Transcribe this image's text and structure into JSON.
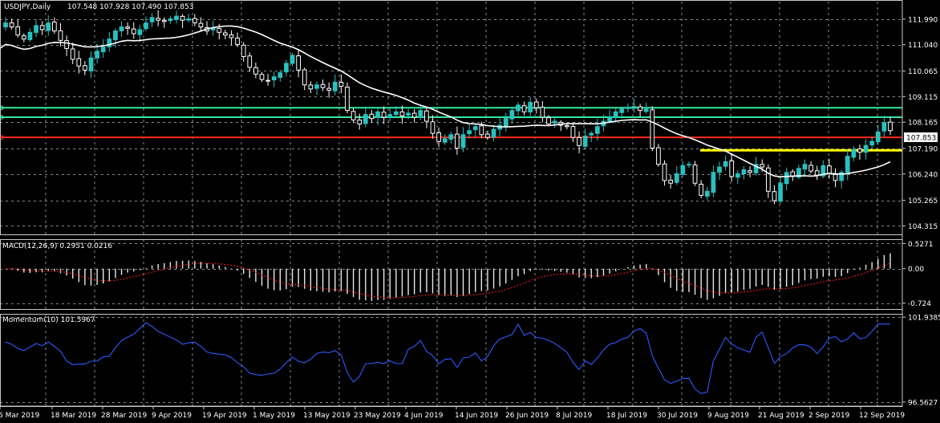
{
  "chart_data": [
    {
      "type": "candlestick",
      "title": "USDJPY,Daily",
      "ohlc_readout": "107.548 107.928 107.490 107.853",
      "ylim": [
        104.0,
        112.7
      ],
      "y_ticks": [
        "111.990",
        "111.040",
        "110.065",
        "109.115",
        "108.165",
        "107.190",
        "106.240",
        "105.265",
        "104.315"
      ],
      "x_labels": [
        "6 Mar 2019",
        "18 Mar 2019",
        "28 Mar 2019",
        "9 Apr 2019",
        "19 Apr 2019",
        "1 May 2019",
        "13 May 2019",
        "23 May 2019",
        "4 Jun 2019",
        "14 Jun 2019",
        "26 Jun 2019",
        "8 Jul 2019",
        "18 Jul 2019",
        "30 Jul 2019",
        "9 Aug 2019",
        "21 Aug 2019",
        "2 Sep 2019",
        "12 Sep 2019"
      ],
      "current_price": "107.853",
      "closes": [
        111.85,
        111.7,
        111.4,
        111.25,
        111.5,
        111.75,
        111.6,
        111.85,
        111.55,
        111.2,
        110.9,
        110.5,
        110.25,
        110.1,
        110.55,
        110.8,
        110.95,
        111.25,
        111.55,
        111.7,
        111.65,
        111.45,
        111.6,
        111.85,
        112.05,
        111.95,
        111.9,
        112.0,
        112.1,
        111.95,
        112.0,
        111.85,
        111.7,
        111.55,
        111.65,
        111.5,
        111.4,
        111.3,
        111.05,
        110.6,
        110.2,
        109.95,
        109.75,
        109.7,
        109.85,
        110.0,
        110.35,
        110.65,
        110.1,
        109.55,
        109.4,
        109.55,
        109.45,
        109.35,
        109.65,
        109.5,
        108.6,
        108.25,
        108.1,
        108.45,
        108.3,
        108.55,
        108.35,
        108.45,
        108.55,
        108.4,
        108.5,
        108.35,
        108.6,
        108.2,
        107.75,
        107.45,
        107.55,
        107.7,
        107.2,
        107.7,
        107.85,
        108.0,
        107.7,
        107.6,
        107.9,
        108.05,
        108.3,
        108.6,
        108.8,
        108.55,
        108.9,
        108.7,
        108.35,
        108.1,
        108.2,
        108.05,
        108.0,
        107.6,
        107.3,
        107.65,
        107.75,
        108.0,
        108.2,
        108.35,
        108.55,
        108.65,
        108.7,
        108.75,
        108.6,
        108.65,
        107.2,
        106.6,
        106.0,
        105.9,
        106.25,
        106.55,
        106.6,
        105.9,
        105.45,
        105.6,
        106.3,
        106.5,
        106.7,
        106.15,
        106.25,
        106.4,
        106.3,
        106.6,
        106.5,
        105.6,
        105.25,
        105.9,
        106.3,
        106.15,
        106.45,
        106.6,
        106.35,
        106.2,
        106.55,
        106.25,
        106.0,
        106.3,
        106.9,
        107.15,
        107.05,
        107.3,
        107.45,
        107.8,
        108.15,
        107.85
      ],
      "sma_series_label": "",
      "horizontal_levels": [
        {
          "value": 108.7,
          "color": "#33e9a0"
        },
        {
          "value": 108.35,
          "color": "#33e9a0"
        },
        {
          "value": 107.6,
          "color": "#ff2a1a"
        },
        {
          "value": 107.12,
          "color": "#ffff00"
        }
      ]
    },
    {
      "type": "histogram+line",
      "title": "MACD(12,26,9) 0.2951 0.0216",
      "ylim": [
        -0.85,
        0.62
      ],
      "y_ticks": [
        "0.5271",
        "0.00",
        "-0.724"
      ]
    },
    {
      "type": "line",
      "title": "Momentum(10) 101.5967",
      "ylim": [
        96.3,
        102.15
      ],
      "y_ticks": [
        "101.9385",
        "96.5627"
      ],
      "line_color": "#2b5bff"
    }
  ]
}
